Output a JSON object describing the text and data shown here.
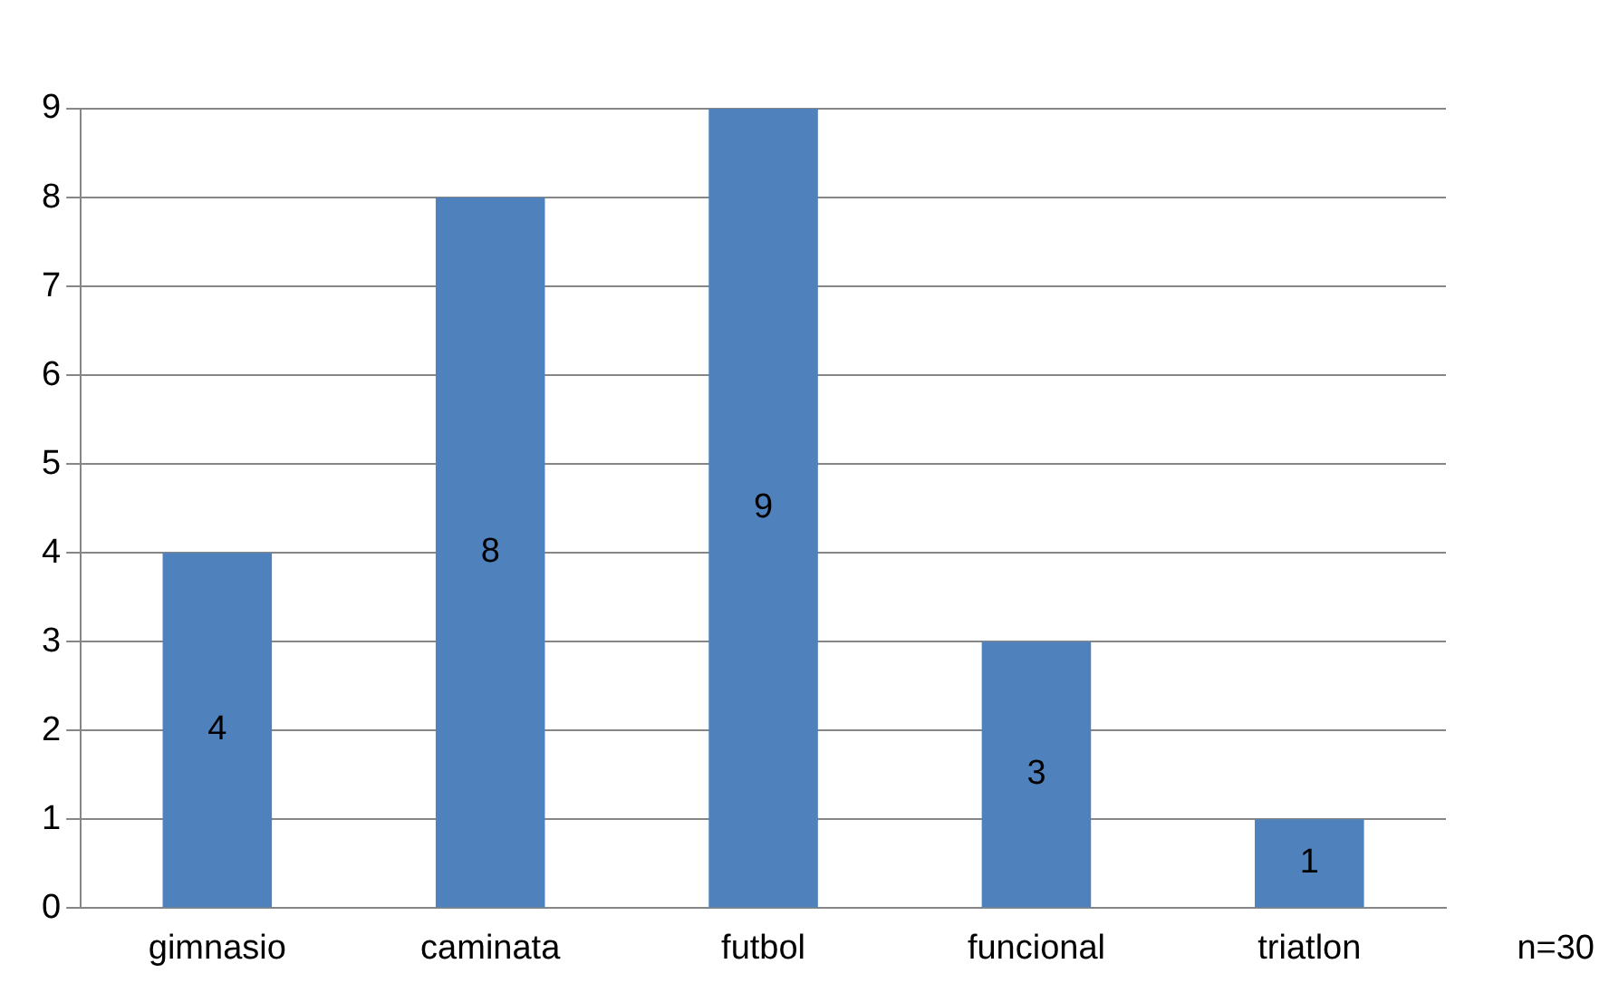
{
  "chart_data": {
    "type": "bar",
    "categories": [
      "gimnasio",
      "caminata",
      "futbol",
      "funcional",
      "triatlon"
    ],
    "values": [
      4,
      8,
      9,
      3,
      1
    ],
    "color": "#4f81bd",
    "ylim": [
      0,
      9
    ],
    "yticks": [
      0,
      1,
      2,
      3,
      4,
      5,
      6,
      7,
      8,
      9
    ],
    "grid": "y",
    "legend": false,
    "data_labels": true,
    "annotations": [
      "n=30"
    ]
  }
}
